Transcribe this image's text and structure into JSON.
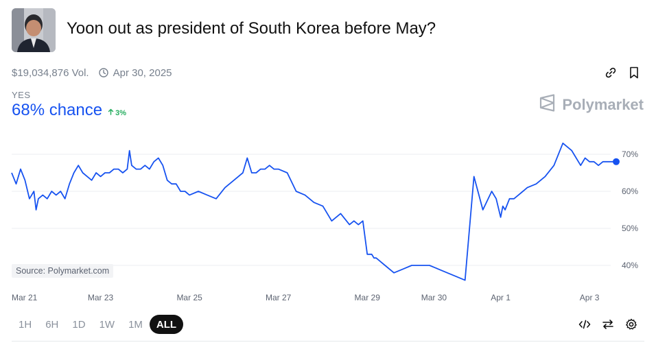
{
  "market": {
    "title": "Yoon out as president of South Korea before May?",
    "volume": "$19,034,876 Vol.",
    "end_date": "Apr 30, 2025",
    "outcome_label": "YES",
    "chance": "68% chance",
    "change": "3%"
  },
  "brand": {
    "name": "Polymarket"
  },
  "source": "Source: Polymarket.com",
  "timeframes": [
    {
      "label": "1H",
      "active": false
    },
    {
      "label": "6H",
      "active": false
    },
    {
      "label": "1D",
      "active": false
    },
    {
      "label": "1W",
      "active": false
    },
    {
      "label": "1M",
      "active": false
    },
    {
      "label": "ALL",
      "active": true
    }
  ],
  "icons": {
    "link": "link-icon",
    "bookmark": "bookmark-icon",
    "clock": "clock-icon",
    "embed": "code-embed-icon",
    "swap": "swap-arrows-icon",
    "settings": "gear-icon",
    "brand": "polymarket-logo-icon",
    "up": "arrow-up-icon"
  },
  "colors": {
    "line": "#1652f0",
    "up": "#27ae60",
    "grid": "#ebedf0",
    "axis_text": "#5b6270"
  },
  "chart_data": {
    "type": "line",
    "y_unit": "%",
    "yticks": [
      "70%",
      "60%",
      "50%",
      "40%"
    ],
    "ytick_values": [
      70,
      60,
      50,
      40
    ],
    "xticks": [
      "Mar 21",
      "Mar 23",
      "Mar 25",
      "Mar 27",
      "Mar 29",
      "Mar 30",
      "Apr 1",
      "Apr 3"
    ],
    "xtick_values": [
      0,
      2,
      4,
      6,
      8,
      9.5,
      11,
      13
    ],
    "x_range": [
      0,
      13.6
    ],
    "ylim": [
      34,
      76
    ],
    "series": [
      {
        "x": [
          0,
          0.1,
          0.2,
          0.3,
          0.4,
          0.5,
          0.55,
          0.6,
          0.7,
          0.8,
          0.9,
          1.0,
          1.1,
          1.2,
          1.3,
          1.4,
          1.5,
          1.6,
          1.7,
          1.8,
          1.9,
          2.0,
          2.1,
          2.2,
          2.3,
          2.4,
          2.5,
          2.6,
          2.65,
          2.7,
          2.8,
          2.9,
          3.0,
          3.1,
          3.2,
          3.3,
          3.4,
          3.5,
          3.6,
          3.7,
          3.8,
          3.9,
          4.0,
          4.2,
          4.4,
          4.6,
          4.8,
          5.0,
          5.2,
          5.3,
          5.4,
          5.5,
          5.6,
          5.7,
          5.8,
          5.9,
          6.0,
          6.2,
          6.4,
          6.6,
          6.8,
          7.0,
          7.2,
          7.4,
          7.6,
          7.7,
          7.8,
          7.9,
          8.0,
          8.1,
          8.15,
          8.2,
          8.4,
          8.6,
          8.8,
          9.0,
          9.2,
          9.4,
          9.6,
          9.8,
          10.0,
          10.2,
          10.4,
          10.6,
          10.8,
          10.9,
          11.0,
          11.05,
          11.1,
          11.2,
          11.3,
          11.4,
          11.5,
          11.6,
          11.8,
          12.0,
          12.2,
          12.4,
          12.6,
          12.8,
          12.9,
          13.0,
          13.1,
          13.2,
          13.3,
          13.4,
          13.5,
          13.6
        ],
        "values": [
          65,
          62,
          66,
          63,
          58,
          60,
          55,
          58,
          59,
          58,
          60,
          59,
          60,
          58,
          62,
          65,
          67,
          65,
          64,
          63,
          65,
          64,
          65,
          65,
          66,
          66,
          65,
          66,
          71,
          67,
          66,
          66,
          67,
          66,
          68,
          69,
          67,
          63,
          62,
          62,
          60,
          60,
          59,
          60,
          59,
          58,
          61,
          63,
          65,
          69,
          65,
          65,
          66,
          66,
          67,
          66,
          66,
          65,
          60,
          59,
          57,
          56,
          52,
          54,
          51,
          52,
          51,
          52,
          43,
          43,
          42,
          42,
          40,
          38,
          39,
          40,
          40,
          40,
          39,
          38,
          37,
          36,
          64,
          55,
          60,
          58,
          53,
          56,
          55,
          58,
          58,
          59,
          60,
          61,
          62,
          64,
          67,
          73,
          71,
          67,
          69,
          68,
          68,
          67,
          68,
          68,
          68,
          68
        ]
      }
    ],
    "last_value": 68,
    "grid": true
  }
}
